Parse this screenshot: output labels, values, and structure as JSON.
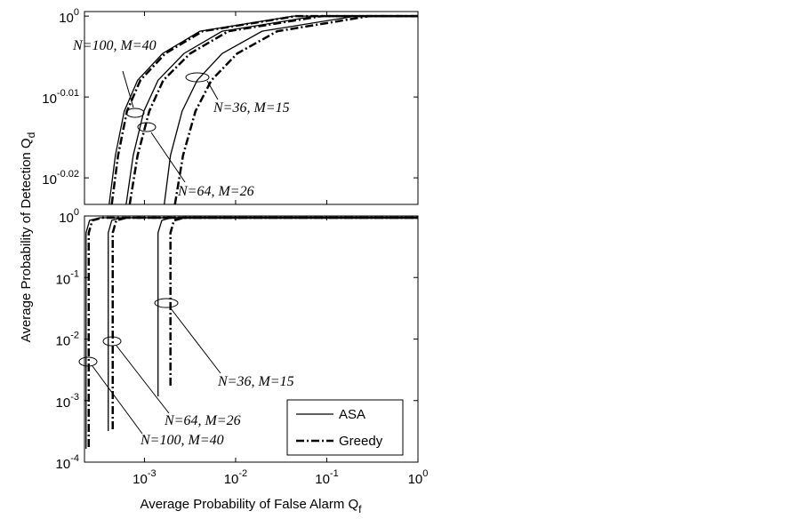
{
  "chart_data": [
    {
      "type": "line",
      "ylabel": {
        "text": "Average Probability of Detection Q",
        "subscript": "d"
      },
      "xscale": "log",
      "yscale": "log",
      "show_xtick_labels": false,
      "xlim": [
        0.00022,
        1
      ],
      "xticks": [
        {
          "value": 0.001,
          "label": "10",
          "exponent": "-3"
        },
        {
          "value": 0.01,
          "label": "10",
          "exponent": "-2"
        },
        {
          "value": 0.1,
          "label": "10",
          "exponent": "-1"
        },
        {
          "value": 1,
          "label": "10",
          "exponent": "0"
        }
      ],
      "ylim": [
        0.9478,
        1.0013
      ],
      "yticks": [
        {
          "value": 0.954993,
          "label": "10",
          "exponent": "-0.02"
        },
        {
          "value": 0.977237,
          "label": "10",
          "exponent": "-0.01"
        },
        {
          "value": 1,
          "label": "10",
          "exponent": "0"
        }
      ],
      "series": [
        {
          "name": "ASA",
          "color": "#000000",
          "style": "solid",
          "x": [
            0.00041,
            0.00048,
            0.000601,
            0.000841,
            0.00158,
            0.00406,
            0.043,
            1
          ],
          "values": [
            0.9478,
            0.9611,
            0.9733,
            0.9819,
            0.9894,
            0.9957,
            1,
            1
          ]
        },
        {
          "name": "Greedy",
          "color": "#000000",
          "style": "dashdot",
          "x": [
            0.000438,
            0.000514,
            0.000643,
            0.000902,
            0.00169,
            0.00435,
            0.0459,
            1
          ],
          "values": [
            0.9478,
            0.9611,
            0.9733,
            0.9819,
            0.9894,
            0.9957,
            1,
            1
          ]
        },
        {
          "name": "ASA",
          "color": "#000000",
          "style": "solid",
          "x": [
            0.00063,
            0.000753,
            0.000986,
            0.00141,
            0.00271,
            0.00711,
            0.0753,
            1
          ],
          "values": [
            0.9478,
            0.9611,
            0.9733,
            0.9819,
            0.9894,
            0.9957,
            1,
            1
          ]
        },
        {
          "name": "Greedy",
          "color": "#000000",
          "style": "dashdot",
          "x": [
            0.000689,
            0.000841,
            0.00113,
            0.00161,
            0.00317,
            0.00832,
            0.0881,
            1
          ],
          "values": [
            0.9478,
            0.9611,
            0.9733,
            0.9819,
            0.9894,
            0.9957,
            1,
            1
          ]
        },
        {
          "name": "ASA",
          "color": "#000000",
          "style": "solid",
          "x": [
            0.00165,
            0.00193,
            0.00259,
            0.00379,
            0.00711,
            0.0195,
            0.207,
            1
          ],
          "values": [
            0.9478,
            0.9611,
            0.9733,
            0.9819,
            0.9894,
            0.9957,
            1,
            1
          ]
        },
        {
          "name": "Greedy",
          "color": "#000000",
          "style": "dashdot",
          "x": [
            0.00216,
            0.00265,
            0.00363,
            0.00543,
            0.0104,
            0.0286,
            0.29,
            1
          ],
          "values": [
            0.9478,
            0.9611,
            0.9733,
            0.9819,
            0.9894,
            0.9957,
            1,
            1
          ]
        }
      ],
      "annotations": [
        {
          "text": "N=100, M=40"
        },
        {
          "text": "N=64, M=26"
        },
        {
          "text": "N=36, M=15"
        }
      ]
    },
    {
      "type": "line",
      "xlabel": {
        "text": "Average Probability of False Alarm Q",
        "subscript": "f"
      },
      "xscale": "log",
      "yscale": "log",
      "show_xtick_labels": true,
      "legend": "lower right",
      "xlim": [
        0.00022,
        1
      ],
      "xticks": [
        {
          "value": 0.001,
          "label": "10",
          "exponent": "-3"
        },
        {
          "value": 0.01,
          "label": "10",
          "exponent": "-2"
        },
        {
          "value": 0.1,
          "label": "10",
          "exponent": "-1"
        },
        {
          "value": 1,
          "label": "10",
          "exponent": "0"
        }
      ],
      "ylim": [
        0.0001,
        1
      ],
      "yticks": [
        {
          "value": 0.0001,
          "label": "10",
          "exponent": "-4"
        },
        {
          "value": 0.001,
          "label": "10",
          "exponent": "-3"
        },
        {
          "value": 0.01,
          "label": "10",
          "exponent": "-2"
        },
        {
          "value": 0.1,
          "label": "10",
          "exponent": "-1"
        },
        {
          "value": 1,
          "label": "10",
          "exponent": "0"
        }
      ],
      "series": [
        {
          "name": "ASA",
          "color": "#000000",
          "style": "solid",
          "x": [
            0.000229,
            0.000229,
            0.00025,
            0.000321,
            1
          ],
          "values": [
            0.000165,
            0.532,
            0.847,
            0.936,
            0.936
          ]
        },
        {
          "name": "Greedy",
          "color": "#000000",
          "style": "dashdot",
          "x": [
            0.000245,
            0.000245,
            0.000268,
            0.000343,
            1
          ],
          "values": [
            0.000176,
            0.532,
            0.847,
            0.936,
            0.936
          ]
        },
        {
          "name": "ASA",
          "color": "#000000",
          "style": "solid",
          "x": [
            0.000401,
            0.000401,
            0.000438,
            0.000562,
            1
          ],
          "values": [
            0.00032,
            0.532,
            0.847,
            0.936,
            0.936
          ]
        },
        {
          "name": "Greedy",
          "color": "#000000",
          "style": "dashdot",
          "x": [
            0.000449,
            0.000449,
            0.000491,
            0.00063,
            1
          ],
          "values": [
            0.000342,
            0.532,
            0.847,
            0.936,
            0.936
          ]
        },
        {
          "name": "ASA",
          "color": "#000000",
          "style": "solid",
          "x": [
            0.00141,
            0.00141,
            0.00155,
            0.00198,
            1
          ],
          "values": [
            0.00117,
            0.532,
            0.847,
            0.936,
            0.936
          ]
        },
        {
          "name": "Greedy",
          "color": "#000000",
          "style": "dashdot",
          "x": [
            0.00193,
            0.00193,
            0.00211,
            0.00271,
            1
          ],
          "values": [
            0.00175,
            0.532,
            0.847,
            0.936,
            0.936
          ]
        }
      ],
      "annotations": [
        {
          "text": "N=36, M=15"
        },
        {
          "text": "N=64, M=26"
        },
        {
          "text": "N=100, M=40"
        }
      ]
    }
  ]
}
